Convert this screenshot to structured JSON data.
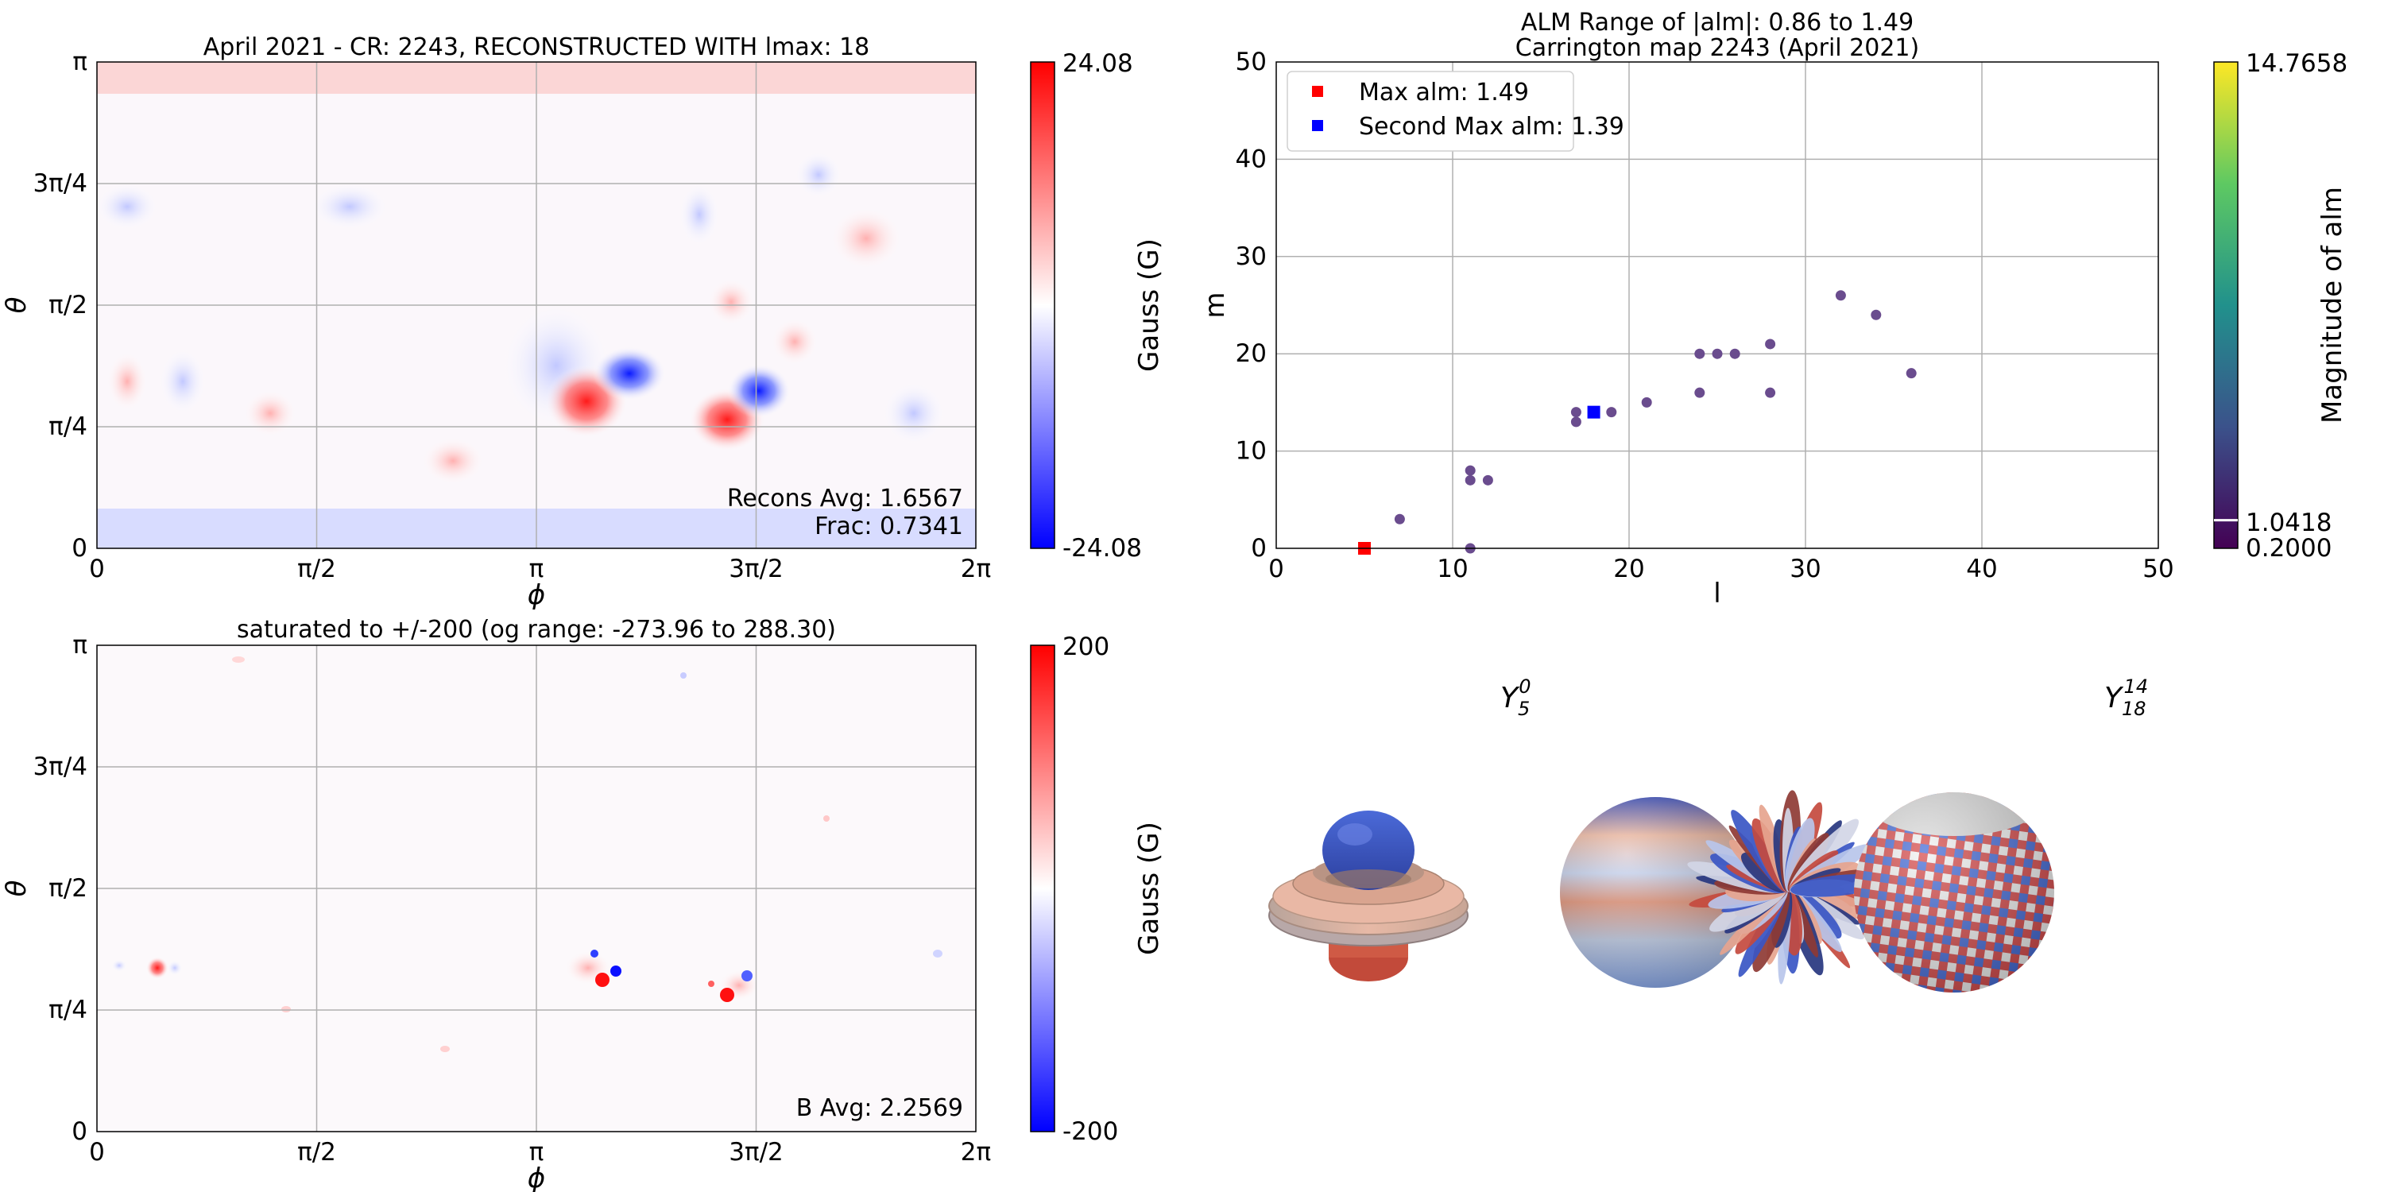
{
  "panels": {
    "top_left": {
      "title": "April 2021 - CR: 2243, RECONSTRUCTED WITH lmax: 18",
      "xlabel": "ϕ",
      "ylabel": "θ",
      "xticks": [
        "0",
        "π/2",
        "π",
        "3π/2",
        "2π"
      ],
      "yticks": [
        "0",
        "π/4",
        "π/2",
        "3π/4",
        "π"
      ],
      "annotation_1": "Recons Avg: 1.6567",
      "annotation_2": "Frac: 0.7341",
      "colorbar": {
        "max_label": "24.08",
        "min_label": "-24.08",
        "label": "Gauss (G)"
      }
    },
    "bottom_left": {
      "title": "saturated to +/-200 (og range: -273.96 to 288.30)",
      "xlabel": "ϕ",
      "ylabel": "θ",
      "xticks": [
        "0",
        "π/2",
        "π",
        "3π/2",
        "2π"
      ],
      "yticks": [
        "0",
        "π/4",
        "π/2",
        "3π/4",
        "π"
      ],
      "annotation": "B Avg: 2.2569",
      "colorbar": {
        "max_label": "200",
        "min_label": "-200",
        "label": "Gauss (G)"
      }
    },
    "top_right": {
      "title_line1": "ALM Range of |alm|: 0.86 to 1.49",
      "title_line2": "Carrington map 2243 (April 2021)",
      "colorbar": {
        "top_label": "14.7658",
        "mid_label": "1.0418",
        "bottom_label": "0.2000",
        "label": "Magnitude of alm"
      }
    },
    "bottom_right": {
      "label_1": {
        "base": "Y",
        "sub": "5",
        "sup": "0"
      },
      "label_2": {
        "base": "Y",
        "sub": "18",
        "sup": "14"
      }
    }
  },
  "chart_data": [
    {
      "type": "heatmap",
      "title": "April 2021 - CR: 2243, RECONSTRUCTED WITH lmax: 18",
      "xlabel": "ϕ",
      "ylabel": "θ",
      "xlim": [
        0,
        6.2832
      ],
      "ylim": [
        0,
        3.1416
      ],
      "colormap": "bwr",
      "clim": [
        -24.08,
        24.08
      ],
      "features": [
        {
          "phi": 3.0,
          "theta": 0.92,
          "value": 20
        },
        {
          "phi": 3.3,
          "theta": 1.1,
          "value": -20
        },
        {
          "phi": 3.7,
          "theta": 0.8,
          "value": 18
        },
        {
          "phi": 3.9,
          "theta": 0.98,
          "value": -22
        }
      ]
    },
    {
      "type": "heatmap",
      "title": "saturated to +/-200 (og range: -273.96 to 288.30)",
      "xlabel": "ϕ",
      "ylabel": "θ",
      "xlim": [
        0,
        6.2832
      ],
      "ylim": [
        0,
        3.1416
      ],
      "colormap": "bwr",
      "clim": [
        -200,
        200
      ],
      "features": [
        {
          "phi": 3.0,
          "theta": 0.9,
          "value": 200
        },
        {
          "phi": 3.2,
          "theta": 0.97,
          "value": -200
        },
        {
          "phi": 3.6,
          "theta": 0.76,
          "value": 200
        },
        {
          "phi": 3.8,
          "theta": 0.85,
          "value": -150
        },
        {
          "phi": 0.6,
          "theta": 0.94,
          "value": 80
        }
      ]
    },
    {
      "type": "scatter",
      "xlabel": "l",
      "ylabel": "m",
      "xlim": [
        0,
        50
      ],
      "ylim": [
        0,
        50
      ],
      "xticks": [
        0,
        10,
        20,
        30,
        40,
        50
      ],
      "yticks": [
        0,
        10,
        20,
        30,
        40,
        50
      ],
      "grid": true,
      "legend_position": "top-left",
      "points": [
        [
          7,
          3
        ],
        [
          11,
          0
        ],
        [
          11,
          7
        ],
        [
          11,
          8
        ],
        [
          12,
          7
        ],
        [
          17,
          13
        ],
        [
          17,
          14
        ],
        [
          19,
          14
        ],
        [
          21,
          15
        ],
        [
          24,
          16
        ],
        [
          24,
          20
        ],
        [
          25,
          20
        ],
        [
          26,
          20
        ],
        [
          28,
          16
        ],
        [
          28,
          21
        ],
        [
          32,
          26
        ],
        [
          34,
          24
        ],
        [
          36,
          18
        ]
      ],
      "highlights": [
        {
          "name": "Max alm: 1.49",
          "l": 5,
          "m": 0,
          "color": "#ff0000"
        },
        {
          "name": "Second Max alm: 1.39",
          "l": 18,
          "m": 14,
          "color": "#0000ff"
        }
      ],
      "point_color": "#6a4c8e",
      "colorbar": {
        "colormap": "viridis",
        "range": [
          0.2,
          14.7658
        ],
        "marker": 1.0418
      }
    }
  ]
}
